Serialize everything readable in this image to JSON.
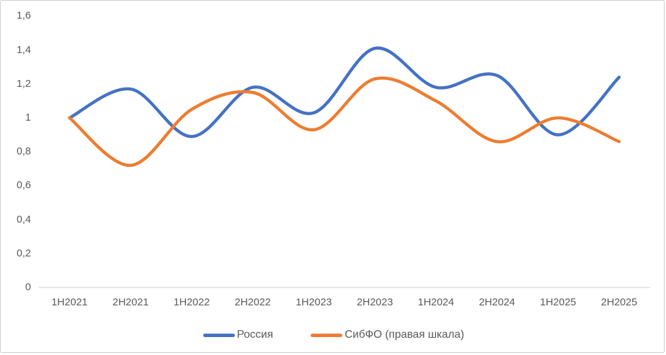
{
  "chart_data": {
    "type": "line",
    "smooth": true,
    "grid": false,
    "legend_position": "bottom",
    "ylim": [
      0,
      1.6
    ],
    "y_tick_labels": [
      "1,6",
      "1,4",
      "1,2",
      "1",
      "0,8",
      "0,6",
      "0,4",
      "0,2",
      "0"
    ],
    "y_tick_values": [
      1.6,
      1.4,
      1.2,
      1.0,
      0.8,
      0.6,
      0.4,
      0.2,
      0
    ],
    "categories": [
      "1H2021",
      "2H2021",
      "1H2022",
      "2H2022",
      "1H2023",
      "2H2023",
      "1H2024",
      "2H2024",
      "1H2025",
      "2H2025"
    ],
    "series": [
      {
        "name": "Россия",
        "color": "#4472C4",
        "values": [
          1.0,
          1.17,
          0.89,
          1.18,
          1.03,
          1.41,
          1.18,
          1.25,
          0.9,
          1.24
        ]
      },
      {
        "name": "СибФО (правая шкала)",
        "color": "#ED7D31",
        "values": [
          1.0,
          0.72,
          1.05,
          1.15,
          0.93,
          1.23,
          1.1,
          0.86,
          1.0,
          0.86
        ]
      }
    ]
  },
  "colors": {
    "text": "#595959",
    "axis_line": "#D9D9D9",
    "background": "#FFFFFF",
    "frame_border": "#CDCDCD"
  }
}
